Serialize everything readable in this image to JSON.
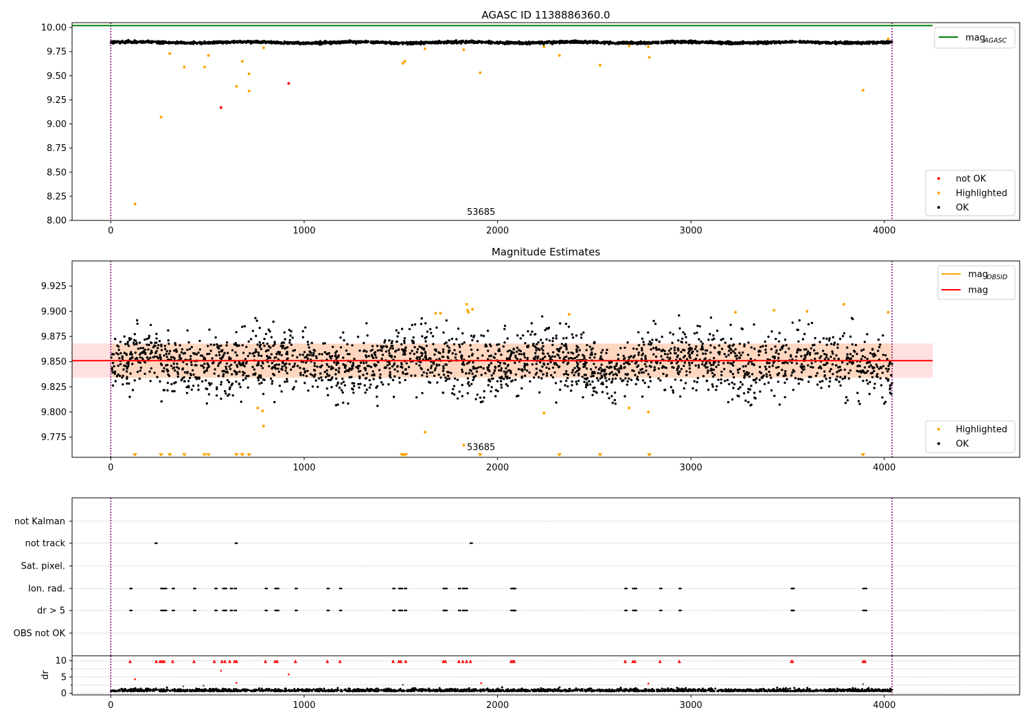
{
  "chart_data": [
    {
      "type": "scatter",
      "title": "AGASC ID 1138886360.0",
      "xlim": [
        -200,
        4700
      ],
      "ylim": [
        8.0,
        10.05
      ],
      "xticks": [
        0,
        1000,
        2000,
        3000,
        4000
      ],
      "yticks": [
        8.0,
        8.25,
        8.5,
        8.75,
        9.0,
        9.25,
        9.5,
        9.75,
        10.0
      ],
      "ytick_labels": [
        "8.00",
        "8.25",
        "8.50",
        "8.75",
        "9.00",
        "9.25",
        "9.50",
        "9.75",
        "10.00"
      ],
      "vlines": [
        0,
        4040
      ],
      "annotation": {
        "text": "53685",
        "x": 1915,
        "y": 8.05
      },
      "hlines": [
        {
          "name": "mag_AGASC",
          "y": 10.02,
          "x_range": [
            -200,
            4250
          ],
          "color": "#008000"
        }
      ],
      "band": {
        "center": 9.845,
        "spread": 0.012,
        "x_range": [
          0,
          4040
        ]
      },
      "series": [
        {
          "name": "not OK",
          "color": "#ff0000",
          "points": [
            [
              570,
              9.17
            ],
            [
              920,
              9.42
            ]
          ]
        },
        {
          "name": "Highlighted",
          "color": "#ffa500",
          "points": [
            [
              125,
              8.17
            ],
            [
              260,
              9.07
            ],
            [
              305,
              9.73
            ],
            [
              380,
              9.59
            ],
            [
              485,
              9.59
            ],
            [
              505,
              9.71
            ],
            [
              650,
              9.39
            ],
            [
              680,
              9.65
            ],
            [
              715,
              9.34
            ],
            [
              715,
              9.52
            ],
            [
              790,
              9.79
            ],
            [
              1510,
              9.63
            ],
            [
              1520,
              9.65
            ],
            [
              1625,
              9.78
            ],
            [
              1825,
              9.77
            ],
            [
              1910,
              9.53
            ],
            [
              2240,
              9.8
            ],
            [
              2320,
              9.71
            ],
            [
              2530,
              9.61
            ],
            [
              2680,
              9.81
            ],
            [
              2780,
              9.8
            ],
            [
              2785,
              9.69
            ],
            [
              3890,
              9.35
            ],
            [
              4020,
              9.88
            ]
          ]
        }
      ],
      "legends": [
        {
          "placement": "upper-right",
          "entries": [
            {
              "label": "mag",
              "sub": "AGASC",
              "kind": "line",
              "color": "#008000"
            }
          ]
        },
        {
          "placement": "lower-right",
          "entries": [
            {
              "label": "not OK",
              "kind": "dot",
              "color": "#ff0000"
            },
            {
              "label": "Highlighted",
              "kind": "dot",
              "color": "#ffa500"
            },
            {
              "label": "OK",
              "kind": "dot",
              "color": "#000000"
            }
          ]
        }
      ]
    },
    {
      "type": "scatter",
      "title": "Magnitude Estimates",
      "xlim": [
        -200,
        4700
      ],
      "ylim": [
        9.755,
        9.95
      ],
      "xticks": [
        0,
        1000,
        2000,
        3000,
        4000
      ],
      "yticks": [
        9.775,
        9.8,
        9.825,
        9.85,
        9.875,
        9.9,
        9.925
      ],
      "ytick_labels": [
        "9.775",
        "9.800",
        "9.825",
        "9.850",
        "9.875",
        "9.900",
        "9.925"
      ],
      "vlines": [
        0,
        4040
      ],
      "annotation": {
        "text": "53685",
        "x": 1915,
        "y": 9.763
      },
      "mag_line": {
        "y": 9.851,
        "x_range": [
          -200,
          4250
        ],
        "color": "#ff0000"
      },
      "mag_band": {
        "y_range": [
          9.834,
          9.868
        ],
        "x_range": [
          -200,
          4250
        ]
      },
      "obsid_band": {
        "y_range": [
          9.834,
          9.868
        ],
        "x_range": [
          0,
          4040
        ]
      },
      "ok_band": {
        "center": 9.849,
        "spread": 0.018,
        "x_range": [
          0,
          4040
        ]
      },
      "series": [
        {
          "name": "Highlighted",
          "color": "#ffa500",
          "points": [
            [
              760,
              9.804
            ],
            [
              785,
              9.801
            ],
            [
              790,
              9.786
            ],
            [
              1625,
              9.78
            ],
            [
              1680,
              9.898
            ],
            [
              1705,
              9.898
            ],
            [
              1825,
              9.767
            ],
            [
              1840,
              9.907
            ],
            [
              1845,
              9.901
            ],
            [
              1850,
              9.899
            ],
            [
              1870,
              9.902
            ],
            [
              2240,
              9.799
            ],
            [
              2370,
              9.897
            ],
            [
              2680,
              9.804
            ],
            [
              2780,
              9.8
            ],
            [
              3230,
              9.899
            ],
            [
              3430,
              9.901
            ],
            [
              3600,
              9.9
            ],
            [
              3790,
              9.907
            ],
            [
              4020,
              9.899
            ]
          ]
        },
        {
          "name": "Highlighted (below range)",
          "color": "#ffa500",
          "markers": [
            125,
            260,
            305,
            380,
            485,
            505,
            650,
            680,
            715,
            1505,
            1515,
            1525,
            1910,
            2320,
            2530,
            2785,
            3890
          ]
        }
      ],
      "legends": [
        {
          "placement": "upper-right",
          "entries": [
            {
              "label": "mag",
              "sub": "OBSID",
              "kind": "line",
              "color": "#ffa500"
            },
            {
              "label": "mag",
              "sub": "",
              "kind": "line",
              "color": "#ff0000"
            }
          ]
        },
        {
          "placement": "lower-right",
          "entries": [
            {
              "label": "Highlighted",
              "kind": "dot",
              "color": "#ffa500"
            },
            {
              "label": "OK",
              "kind": "dot",
              "color": "#000000"
            }
          ]
        }
      ]
    },
    {
      "type": "scatter",
      "title": "",
      "xlim": [
        -200,
        4700
      ],
      "categories": [
        "not Kalman",
        "not track",
        "Sat. pixel.",
        "Ion. rad.",
        "dr > 5",
        "OBS not OK"
      ],
      "vlines": [
        0,
        4040
      ],
      "flags": {
        "not Kalman": [],
        "not track": [
          230,
          645,
          1860
        ],
        "Sat. pixel.": [],
        "Ion. rad.": [
          100,
          260,
          270,
          280,
          320,
          430,
          540,
          580,
          590,
          620,
          640,
          800,
          850,
          860,
          955,
          1120,
          1185,
          1460,
          1490,
          1500,
          1520,
          1720,
          1730,
          1800,
          1820,
          1835,
          2070,
          2080,
          2085,
          2660,
          2700,
          2710,
          2840,
          2940,
          3520,
          3525,
          3890,
          3900
        ],
        "dr > 5": [
          100,
          260,
          270,
          280,
          320,
          430,
          540,
          580,
          590,
          620,
          640,
          800,
          850,
          860,
          955,
          1120,
          1185,
          1460,
          1490,
          1500,
          1520,
          1720,
          1730,
          1800,
          1820,
          1835,
          2070,
          2080,
          2085,
          2660,
          2700,
          2710,
          2840,
          2940,
          3520,
          3525,
          3890,
          3900
        ],
        "OBS not OK": []
      }
    },
    {
      "type": "scatter",
      "title": "",
      "ylabel": "dr",
      "xlim": [
        -200,
        4700
      ],
      "ylim": [
        -0.5,
        11.5
      ],
      "xticks": [
        0,
        1000,
        2000,
        3000,
        4000
      ],
      "yticks": [
        0,
        5,
        10
      ],
      "ytick_labels": [
        "0",
        "5",
        "10"
      ],
      "vlines": [
        0,
        4040
      ],
      "ok_band": {
        "center": 0.6,
        "spread": 0.35,
        "x_range": [
          0,
          4040
        ]
      },
      "red_points": [
        [
          125,
          4.3
        ],
        [
          570,
          6.9
        ],
        [
          650,
          3.2
        ],
        [
          920,
          5.8
        ],
        [
          1915,
          3.1
        ],
        [
          2780,
          3.0
        ]
      ],
      "gray_points": [
        [
          375,
          2.1
        ],
        [
          480,
          2.3
        ],
        [
          1510,
          2.6
        ],
        [
          3890,
          2.8
        ]
      ],
      "capped_markers": [
        100,
        235,
        255,
        265,
        275,
        320,
        430,
        535,
        575,
        590,
        615,
        640,
        650,
        800,
        850,
        860,
        955,
        1120,
        1185,
        1460,
        1490,
        1500,
        1525,
        1720,
        1730,
        1800,
        1820,
        1840,
        1860,
        2070,
        2080,
        2085,
        2660,
        2700,
        2710,
        2840,
        2940,
        3520,
        3525,
        3890,
        3900
      ]
    }
  ]
}
